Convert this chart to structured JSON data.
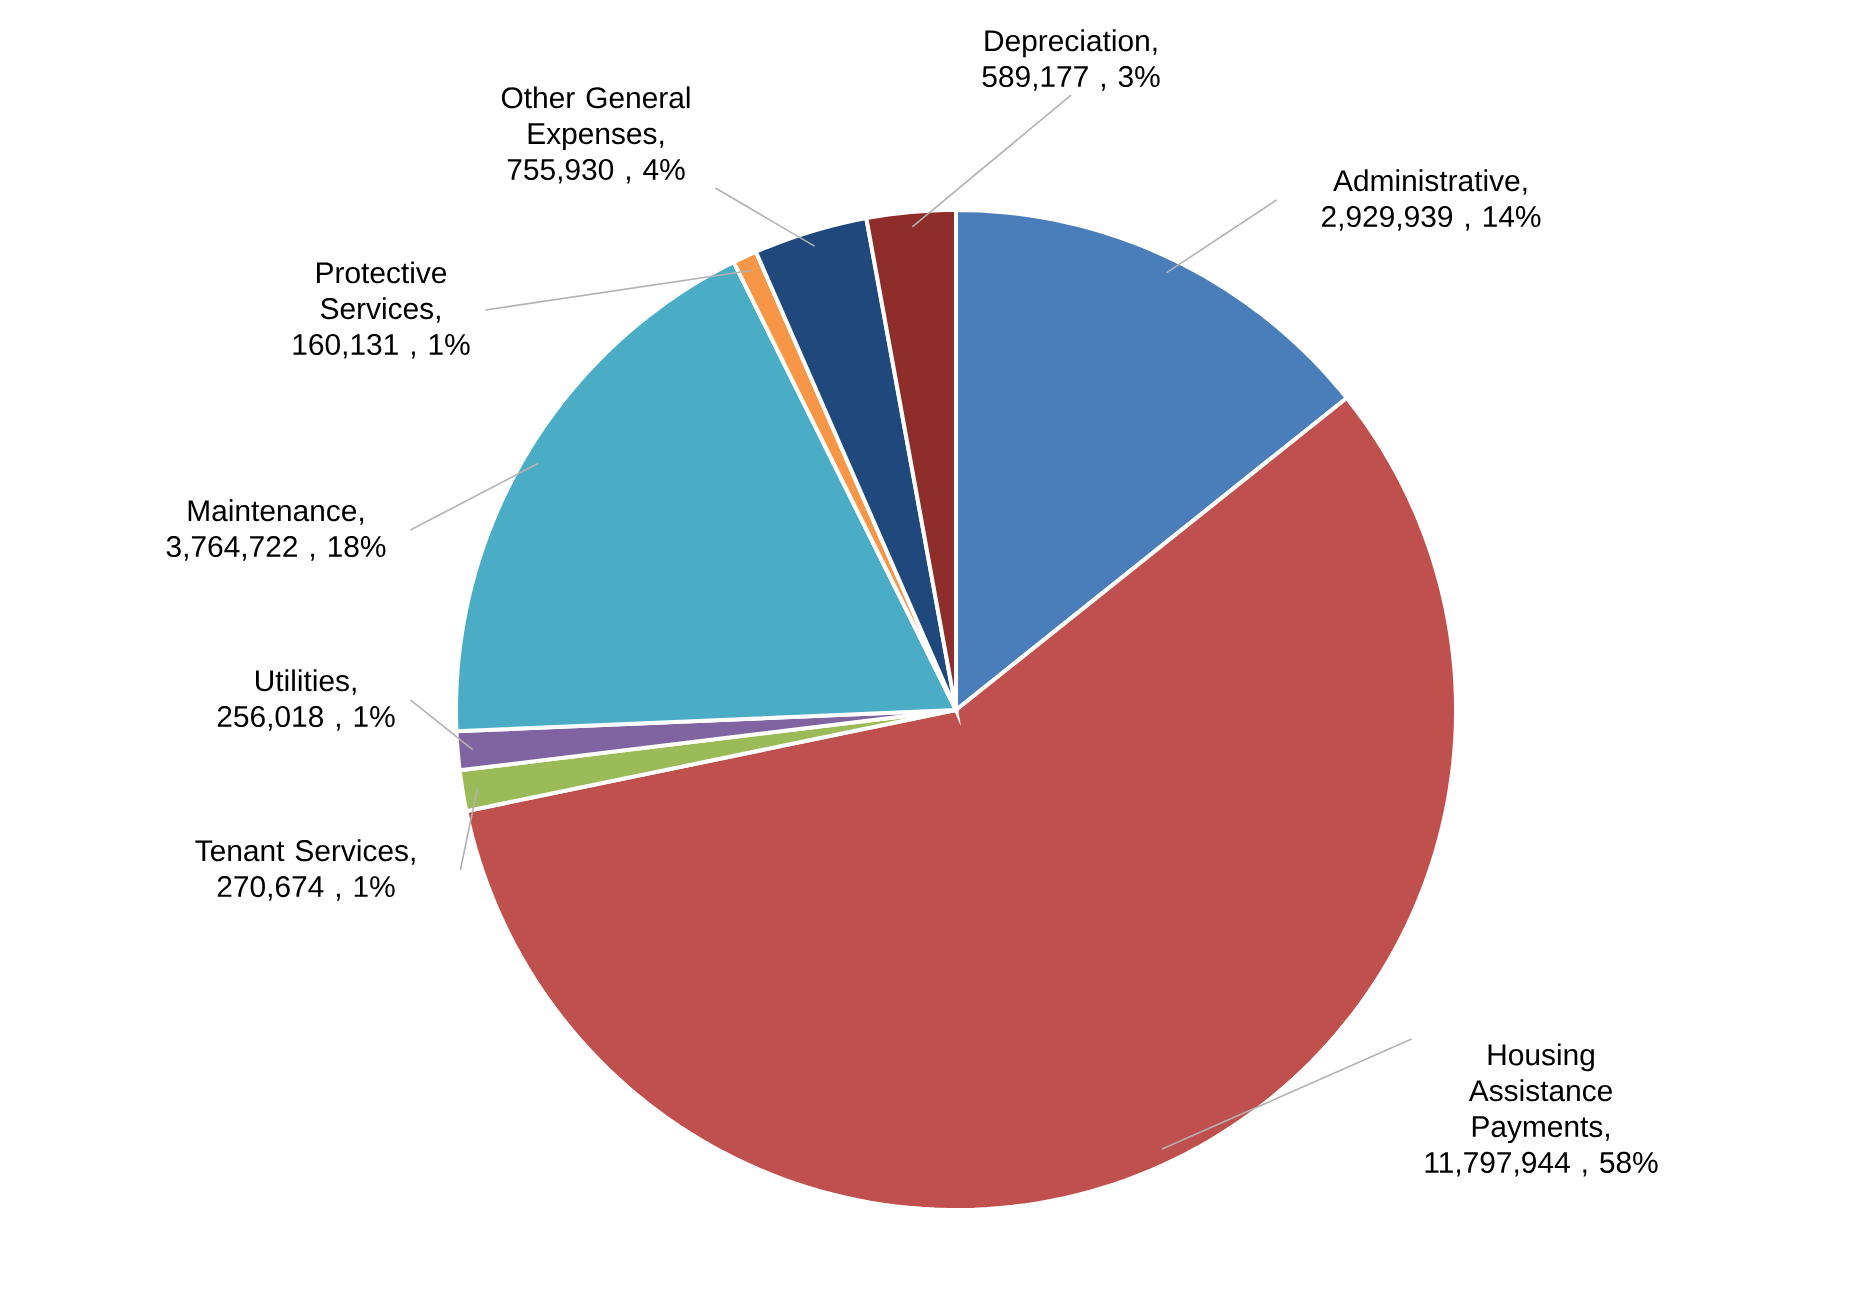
{
  "chart_data": {
    "type": "pie",
    "categories": [
      "Administrative",
      "Housing Assistance Payments",
      "Tenant Services",
      "Utilities",
      "Maintenance",
      "Protective Services",
      "Other General Expenses",
      "Depreciation"
    ],
    "values": [
      2929939,
      11797944,
      270674,
      256018,
      3764722,
      160131,
      755930,
      589177
    ],
    "value_labels": [
      ", 2,929,939 , 14%",
      ", 11,797,944 , 58%",
      ", 270,674 , 1%",
      ", 256,018 , 1%",
      ", 3,764,722 , 18%",
      ", 160,131 , 1%",
      ", 755,930 , 4%",
      ", 589,177 , 3%"
    ],
    "colors": [
      "#4a7ebb",
      "#c0504d",
      "#9bbb59",
      "#8064a2",
      "#4bacc6",
      "#f79646",
      "#1f497d",
      "#8e2d2a"
    ]
  }
}
